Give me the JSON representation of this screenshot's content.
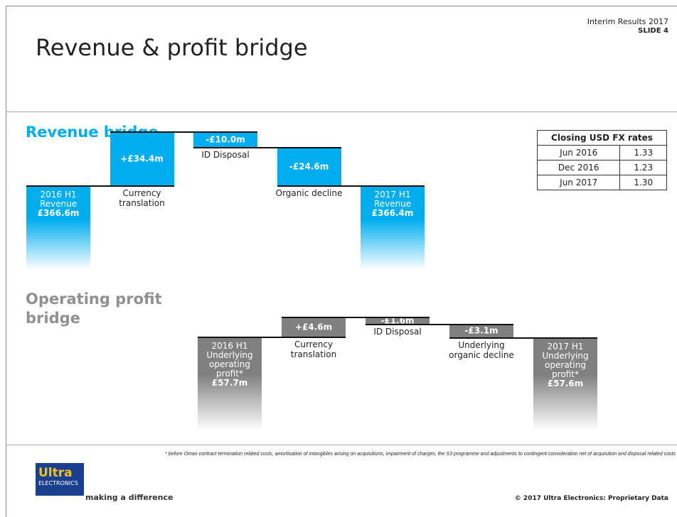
{
  "header": {
    "title": "Revenue & profit bridge",
    "event": "Interim Results 2017",
    "slide": "SLIDE 4"
  },
  "chart_data": [
    {
      "type": "waterfall",
      "title": "Revenue bridge",
      "color": "#00aeef",
      "categories": [
        "2016 H1 Revenue",
        "Currency translation",
        "ID Disposal",
        "Organic decline",
        "2017 H1 Revenue"
      ],
      "values": [
        366.6,
        34.4,
        -10.0,
        -24.6,
        366.4
      ],
      "value_labels": [
        "£366.6m",
        "+£34.4m",
        "-£10.0m",
        "-£24.6m",
        "£366.4m"
      ],
      "totals": [
        true,
        false,
        false,
        false,
        true
      ]
    },
    {
      "type": "waterfall",
      "title": "Operating profit bridge",
      "color": "#808080",
      "categories": [
        "2016 H1 Underlying operating profit*",
        "Currency translation",
        "ID Disposal",
        "Underlying organic decline",
        "2017 H1 Underlying operating profit*"
      ],
      "values": [
        57.7,
        4.6,
        -1.6,
        -3.1,
        57.6
      ],
      "value_labels": [
        "£57.7m",
        "+£4.6m",
        "-£1.6m",
        "-£3.1m",
        "£57.6m"
      ],
      "totals": [
        true,
        false,
        false,
        false,
        true
      ]
    }
  ],
  "table": {
    "header": "Closing USD FX rates",
    "rows": [
      [
        "Jun 2016",
        "1.33"
      ],
      [
        "Dec 2016",
        "1.23"
      ],
      [
        "Jun 2017",
        "1.30"
      ]
    ]
  },
  "footnote": "* before Oman contract termination related costs, amortisation of intangibles arising on acquisitions, impairment of charges, the S3 programme and adjustments to contingent consideration net of acquisition and disposal related costs",
  "footer": {
    "logo_top": "Ultra",
    "logo_bottom": "ELECTRONICS",
    "tagline": "making a difference",
    "copyright": "© 2017 Ultra Electronics: Proprietary Data"
  }
}
